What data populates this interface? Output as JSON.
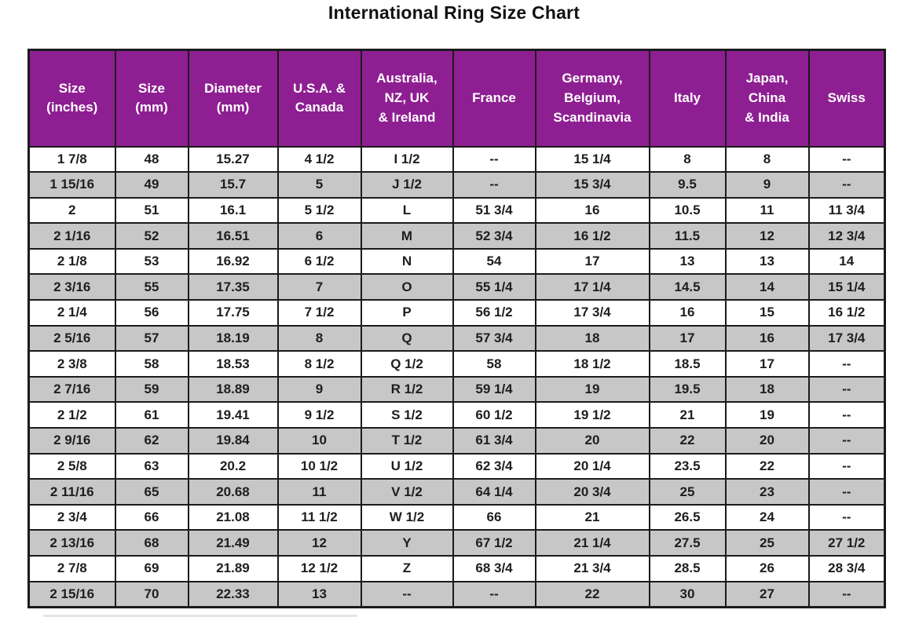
{
  "page": {
    "title": "International Ring Size Chart"
  },
  "colors": {
    "header_bg": "#8e1f92",
    "header_text": "#ffffff",
    "row_bg": "#ffffff",
    "row_alt_bg": "#c7c7c7",
    "border": "#1b1b1b",
    "title_text": "#111111"
  },
  "chart_data": {
    "type": "table",
    "title": "International Ring Size Chart",
    "columns": [
      "Size\n(inches)",
      "Size\n(mm)",
      "Diameter\n(mm)",
      "U.S.A. &\nCanada",
      "Australia,\nNZ, UK\n& Ireland",
      "France",
      "Germany,\nBelgium,\nScandinavia",
      "Italy",
      "Japan,\nChina\n& India",
      "Swiss"
    ],
    "rows": [
      [
        "1 7/8",
        "48",
        "15.27",
        "4 1/2",
        "I 1/2",
        "--",
        "15 1/4",
        "8",
        "8",
        "--"
      ],
      [
        "1 15/16",
        "49",
        "15.7",
        "5",
        "J 1/2",
        "--",
        "15 3/4",
        "9.5",
        "9",
        "--"
      ],
      [
        "2",
        "51",
        "16.1",
        "5 1/2",
        "L",
        "51 3/4",
        "16",
        "10.5",
        "11",
        "11 3/4"
      ],
      [
        "2 1/16",
        "52",
        "16.51",
        "6",
        "M",
        "52 3/4",
        "16 1/2",
        "11.5",
        "12",
        "12 3/4"
      ],
      [
        "2 1/8",
        "53",
        "16.92",
        "6 1/2",
        "N",
        "54",
        "17",
        "13",
        "13",
        "14"
      ],
      [
        "2 3/16",
        "55",
        "17.35",
        "7",
        "O",
        "55 1/4",
        "17 1/4",
        "14.5",
        "14",
        "15 1/4"
      ],
      [
        "2 1/4",
        "56",
        "17.75",
        "7 1/2",
        "P",
        "56 1/2",
        "17 3/4",
        "16",
        "15",
        "16 1/2"
      ],
      [
        "2 5/16",
        "57",
        "18.19",
        "8",
        "Q",
        "57 3/4",
        "18",
        "17",
        "16",
        "17 3/4"
      ],
      [
        "2 3/8",
        "58",
        "18.53",
        "8 1/2",
        "Q 1/2",
        "58",
        "18 1/2",
        "18.5",
        "17",
        "--"
      ],
      [
        "2 7/16",
        "59",
        "18.89",
        "9",
        "R 1/2",
        "59 1/4",
        "19",
        "19.5",
        "18",
        "--"
      ],
      [
        "2 1/2",
        "61",
        "19.41",
        "9 1/2",
        "S 1/2",
        "60 1/2",
        "19 1/2",
        "21",
        "19",
        "--"
      ],
      [
        "2 9/16",
        "62",
        "19.84",
        "10",
        "T 1/2",
        "61 3/4",
        "20",
        "22",
        "20",
        "--"
      ],
      [
        "2 5/8",
        "63",
        "20.2",
        "10 1/2",
        "U 1/2",
        "62 3/4",
        "20 1/4",
        "23.5",
        "22",
        "--"
      ],
      [
        "2 11/16",
        "65",
        "20.68",
        "11",
        "V 1/2",
        "64 1/4",
        "20 3/4",
        "25",
        "23",
        "--"
      ],
      [
        "2 3/4",
        "66",
        "21.08",
        "11 1/2",
        "W 1/2",
        "66",
        "21",
        "26.5",
        "24",
        "--"
      ],
      [
        "2 13/16",
        "68",
        "21.49",
        "12",
        "Y",
        "67 1/2",
        "21 1/4",
        "27.5",
        "25",
        "27 1/2"
      ],
      [
        "2 7/8",
        "69",
        "21.89",
        "12 1/2",
        "Z",
        "68 3/4",
        "21 3/4",
        "28.5",
        "26",
        "28 3/4"
      ],
      [
        "2 15/16",
        "70",
        "22.33",
        "13",
        "--",
        "--",
        "22",
        "30",
        "27",
        "--"
      ]
    ]
  }
}
